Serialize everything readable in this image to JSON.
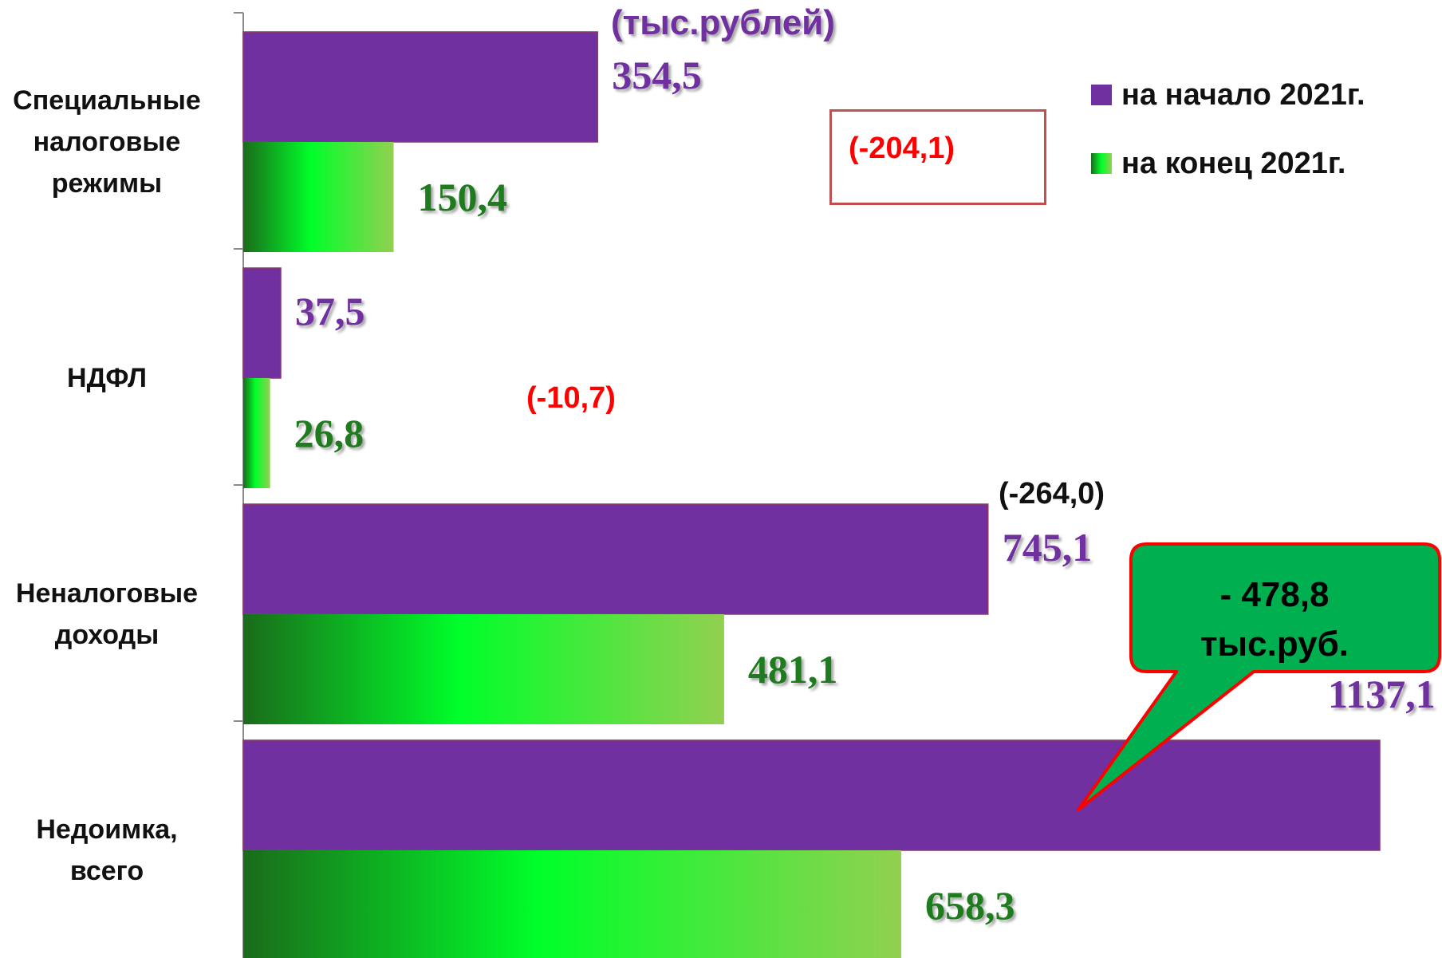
{
  "chart_data": {
    "type": "bar",
    "orientation": "horizontal",
    "title": "",
    "xlabel": "",
    "ylabel": "",
    "unit_label": "(тыс.рублей)",
    "categories": [
      "Специальные налоговые режимы",
      "НДФЛ",
      "Неналоговые доходы",
      "Недоимка, всего"
    ],
    "category_lines": [
      [
        "Специальные",
        "налоговые",
        "режимы"
      ],
      [
        "НДФЛ"
      ],
      [
        "Неналоговые",
        "доходы"
      ],
      [
        "Недоимка,",
        "всего"
      ]
    ],
    "series": [
      {
        "name": "на начало 2021г.",
        "values": [
          354.5,
          37.5,
          745.1,
          1137.1
        ],
        "labels": [
          "354,5",
          "37,5",
          "745,1",
          "1137,1"
        ],
        "color": "#7030a0"
      },
      {
        "name": "на конец 2021г.",
        "values": [
          150.4,
          26.8,
          481.1,
          658.3
        ],
        "labels": [
          "150,4",
          "26,8",
          "481,1",
          "658,3"
        ],
        "color": "#00ff00"
      }
    ],
    "differences": [
      "(-204,1)",
      "(-10,7)",
      "(-264,0)"
    ],
    "difference_colors": [
      "#ff0000",
      "#ff0000",
      "#111111"
    ],
    "callout": [
      "- 478,8",
      "тыс.руб."
    ],
    "xlim": [
      0,
      1137.1
    ],
    "grid": false,
    "legend_position": "top-right"
  },
  "colors": {
    "start_bar": "#7030a0",
    "end_gradient": [
      "#1a6b1a",
      "#00ff2a",
      "#92d050"
    ],
    "callout_fill": "#00b050",
    "callout_border": "#ff0000",
    "difference_box_border": "#c0504d"
  }
}
